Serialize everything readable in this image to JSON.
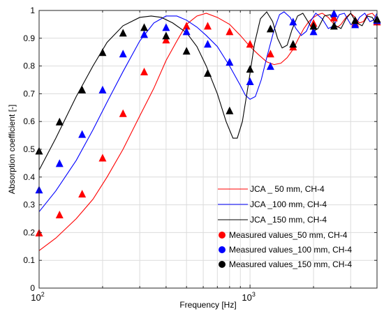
{
  "chart_data": {
    "type": "line",
    "title": "",
    "xlabel": "Frequency [Hz]",
    "ylabel": "Absorption coefficient [-]",
    "xscale": "log",
    "xlim": [
      100,
      4000
    ],
    "ylim": [
      0,
      1
    ],
    "grid": true,
    "legend_position": "bottom-right",
    "x_tick_labels": [
      {
        "value": 100,
        "base": "10",
        "exp": "2"
      },
      {
        "value": 1000,
        "base": "10",
        "exp": "3"
      }
    ],
    "y_ticks": [
      0,
      0.1,
      0.2,
      0.3,
      0.4,
      0.5,
      0.6,
      0.7,
      0.8,
      0.9,
      1
    ],
    "y_tick_labels": [
      "0",
      "0.1",
      "0.2",
      "0.3",
      "0.4",
      "0.5",
      "0.6",
      "0.7",
      "0.8",
      "0.9",
      "1"
    ],
    "line_series": [
      {
        "name": "JCA _ 50 mm, CH-4",
        "color": "#ff0000",
        "points": [
          [
            100,
            0.135
          ],
          [
            120,
            0.18
          ],
          [
            150,
            0.25
          ],
          [
            180,
            0.32
          ],
          [
            210,
            0.4
          ],
          [
            250,
            0.5
          ],
          [
            300,
            0.62
          ],
          [
            350,
            0.72
          ],
          [
            400,
            0.82
          ],
          [
            450,
            0.89
          ],
          [
            500,
            0.95
          ],
          [
            560,
            0.98
          ],
          [
            620,
            0.99
          ],
          [
            700,
            0.975
          ],
          [
            800,
            0.95
          ],
          [
            900,
            0.91
          ],
          [
            1000,
            0.87
          ],
          [
            1100,
            0.84
          ],
          [
            1200,
            0.815
          ],
          [
            1300,
            0.805
          ],
          [
            1400,
            0.81
          ],
          [
            1500,
            0.83
          ],
          [
            1600,
            0.86
          ],
          [
            1700,
            0.9
          ],
          [
            1800,
            0.935
          ],
          [
            1900,
            0.96
          ],
          [
            2000,
            0.975
          ],
          [
            2100,
            0.985
          ],
          [
            2200,
            0.99
          ],
          [
            2350,
            0.975
          ],
          [
            2500,
            0.95
          ],
          [
            2600,
            0.94
          ],
          [
            2700,
            0.95
          ],
          [
            2850,
            0.975
          ],
          [
            3000,
            0.99
          ],
          [
            3150,
            0.975
          ],
          [
            3300,
            0.955
          ],
          [
            3450,
            0.96
          ],
          [
            3600,
            0.985
          ],
          [
            3800,
            0.99
          ],
          [
            4000,
            0.97
          ]
        ]
      },
      {
        "name": "JCA _100 mm, CH-4",
        "color": "#0000ff",
        "points": [
          [
            100,
            0.275
          ],
          [
            120,
            0.35
          ],
          [
            150,
            0.46
          ],
          [
            180,
            0.57
          ],
          [
            210,
            0.67
          ],
          [
            250,
            0.78
          ],
          [
            300,
            0.89
          ],
          [
            350,
            0.955
          ],
          [
            400,
            0.98
          ],
          [
            450,
            0.98
          ],
          [
            500,
            0.965
          ],
          [
            560,
            0.94
          ],
          [
            620,
            0.91
          ],
          [
            700,
            0.87
          ],
          [
            800,
            0.8
          ],
          [
            900,
            0.73
          ],
          [
            950,
            0.695
          ],
          [
            1000,
            0.68
          ],
          [
            1060,
            0.69
          ],
          [
            1130,
            0.75
          ],
          [
            1200,
            0.83
          ],
          [
            1300,
            0.93
          ],
          [
            1380,
            0.985
          ],
          [
            1450,
            0.995
          ],
          [
            1550,
            0.975
          ],
          [
            1650,
            0.935
          ],
          [
            1750,
            0.91
          ],
          [
            1850,
            0.925
          ],
          [
            1950,
            0.965
          ],
          [
            2050,
            0.99
          ],
          [
            2200,
            0.97
          ],
          [
            2350,
            0.935
          ],
          [
            2500,
            0.945
          ],
          [
            2650,
            0.985
          ],
          [
            2800,
            0.99
          ],
          [
            3000,
            0.95
          ],
          [
            3150,
            0.945
          ],
          [
            3300,
            0.975
          ],
          [
            3500,
            0.99
          ],
          [
            3700,
            0.96
          ],
          [
            3850,
            0.965
          ],
          [
            4000,
            0.99
          ]
        ]
      },
      {
        "name": "JCA _150 mm, CH-4",
        "color": "#000000",
        "points": [
          [
            100,
            0.425
          ],
          [
            120,
            0.54
          ],
          [
            150,
            0.69
          ],
          [
            180,
            0.8
          ],
          [
            210,
            0.885
          ],
          [
            250,
            0.945
          ],
          [
            300,
            0.975
          ],
          [
            340,
            0.98
          ],
          [
            380,
            0.975
          ],
          [
            430,
            0.955
          ],
          [
            500,
            0.92
          ],
          [
            560,
            0.87
          ],
          [
            620,
            0.8
          ],
          [
            700,
            0.7
          ],
          [
            770,
            0.6
          ],
          [
            830,
            0.54
          ],
          [
            870,
            0.54
          ],
          [
            920,
            0.6
          ],
          [
            980,
            0.73
          ],
          [
            1050,
            0.88
          ],
          [
            1120,
            0.97
          ],
          [
            1200,
            0.995
          ],
          [
            1280,
            0.96
          ],
          [
            1350,
            0.9
          ],
          [
            1420,
            0.865
          ],
          [
            1500,
            0.875
          ],
          [
            1580,
            0.93
          ],
          [
            1680,
            0.98
          ],
          [
            1780,
            0.99
          ],
          [
            1900,
            0.955
          ],
          [
            2000,
            0.925
          ],
          [
            2100,
            0.935
          ],
          [
            2250,
            0.98
          ],
          [
            2400,
            0.985
          ],
          [
            2550,
            0.945
          ],
          [
            2700,
            0.935
          ],
          [
            2850,
            0.97
          ],
          [
            3000,
            0.99
          ],
          [
            3200,
            0.955
          ],
          [
            3400,
            0.945
          ],
          [
            3600,
            0.98
          ],
          [
            3800,
            0.975
          ],
          [
            4000,
            0.945
          ]
        ]
      }
    ],
    "marker_series": [
      {
        "name": "Measured values_50 mm, CH-4",
        "color": "#ff0000",
        "points": [
          [
            100,
            0.2
          ],
          [
            125,
            0.265
          ],
          [
            160,
            0.34
          ],
          [
            200,
            0.47
          ],
          [
            250,
            0.63
          ],
          [
            315,
            0.78
          ],
          [
            400,
            0.895
          ],
          [
            500,
            0.945
          ],
          [
            630,
            0.945
          ],
          [
            800,
            0.925
          ],
          [
            1000,
            0.88
          ],
          [
            1250,
            0.845
          ],
          [
            1600,
            0.87
          ],
          [
            2000,
            0.955
          ],
          [
            2500,
            0.975
          ],
          [
            3150,
            0.955
          ],
          [
            4000,
            0.96
          ]
        ]
      },
      {
        "name": "Measured values_100 mm, CH-4",
        "color": "#0000ff",
        "points": [
          [
            100,
            0.355
          ],
          [
            125,
            0.45
          ],
          [
            160,
            0.555
          ],
          [
            200,
            0.715
          ],
          [
            250,
            0.845
          ],
          [
            315,
            0.915
          ],
          [
            400,
            0.94
          ],
          [
            500,
            0.925
          ],
          [
            630,
            0.88
          ],
          [
            800,
            0.815
          ],
          [
            1000,
            0.745
          ],
          [
            1250,
            0.8
          ],
          [
            1600,
            0.96
          ],
          [
            2000,
            0.925
          ],
          [
            2500,
            0.99
          ],
          [
            3150,
            0.95
          ],
          [
            4000,
            0.965
          ]
        ]
      },
      {
        "name": "Measured values_150 mm, CH-4",
        "color": "#000000",
        "points": [
          [
            100,
            0.495
          ],
          [
            125,
            0.6
          ],
          [
            160,
            0.715
          ],
          [
            200,
            0.85
          ],
          [
            250,
            0.92
          ],
          [
            315,
            0.94
          ],
          [
            400,
            0.91
          ],
          [
            500,
            0.855
          ],
          [
            630,
            0.775
          ],
          [
            800,
            0.64
          ],
          [
            1000,
            0.79
          ],
          [
            1250,
            0.935
          ],
          [
            1600,
            0.88
          ],
          [
            2000,
            0.945
          ],
          [
            2500,
            0.945
          ],
          [
            3150,
            0.965
          ],
          [
            4000,
            0.97
          ]
        ]
      }
    ]
  }
}
